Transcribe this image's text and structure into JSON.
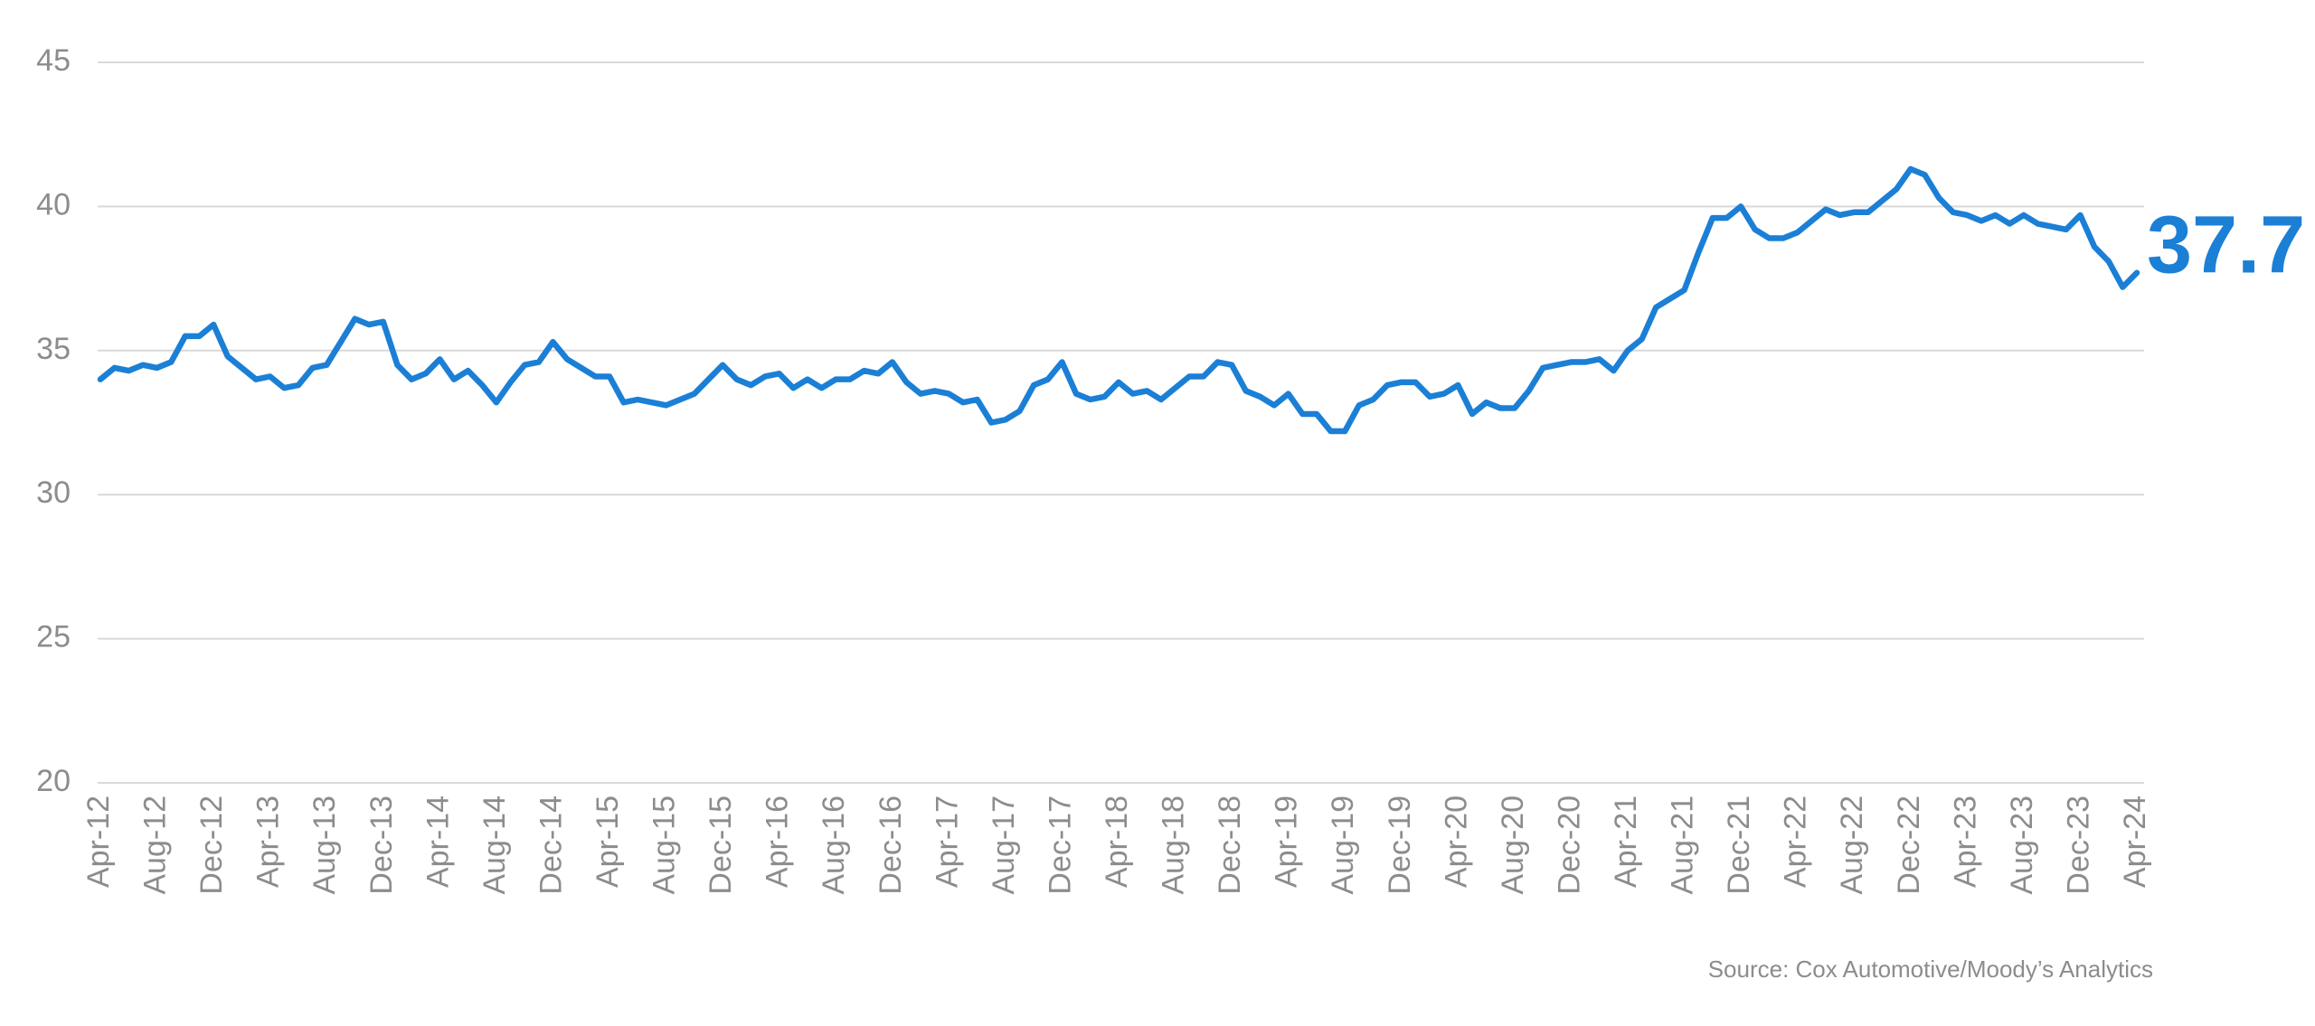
{
  "chart_data": {
    "type": "line",
    "categories": [
      "Apr-12",
      null,
      null,
      null,
      "Aug-12",
      null,
      null,
      null,
      "Dec-12",
      null,
      null,
      null,
      "Apr-13",
      null,
      null,
      null,
      "Aug-13",
      null,
      null,
      null,
      "Dec-13",
      null,
      null,
      null,
      "Apr-14",
      null,
      null,
      null,
      "Aug-14",
      null,
      null,
      null,
      "Dec-14",
      null,
      null,
      null,
      "Apr-15",
      null,
      null,
      null,
      "Aug-15",
      null,
      null,
      null,
      "Dec-15",
      null,
      null,
      null,
      "Apr-16",
      null,
      null,
      null,
      "Aug-16",
      null,
      null,
      null,
      "Dec-16",
      null,
      null,
      null,
      "Apr-17",
      null,
      null,
      null,
      "Aug-17",
      null,
      null,
      null,
      "Dec-17",
      null,
      null,
      null,
      "Apr-18",
      null,
      null,
      null,
      "Aug-18",
      null,
      null,
      null,
      "Dec-18",
      null,
      null,
      null,
      "Apr-19",
      null,
      null,
      null,
      "Aug-19",
      null,
      null,
      null,
      "Dec-19",
      null,
      null,
      null,
      "Apr-20",
      null,
      null,
      null,
      "Aug-20",
      null,
      null,
      null,
      "Dec-20",
      null,
      null,
      null,
      "Apr-21",
      null,
      null,
      null,
      "Aug-21",
      null,
      null,
      null,
      "Dec-21",
      null,
      null,
      null,
      "Apr-22",
      null,
      null,
      null,
      "Aug-22",
      null,
      null,
      null,
      "Dec-22",
      null,
      null,
      null,
      "Apr-23",
      null,
      null,
      null,
      "Aug-23",
      null,
      null,
      null,
      "Dec-23",
      null,
      null,
      null,
      "Apr-24"
    ],
    "values": [
      34.0,
      34.4,
      34.3,
      34.5,
      34.4,
      34.6,
      35.5,
      35.5,
      35.9,
      34.8,
      34.4,
      34.0,
      34.1,
      33.7,
      33.8,
      34.4,
      34.5,
      35.3,
      36.1,
      35.9,
      36.0,
      34.5,
      34.0,
      34.2,
      34.7,
      34.0,
      34.3,
      33.8,
      33.2,
      33.9,
      34.5,
      34.6,
      35.3,
      34.7,
      34.4,
      34.1,
      34.1,
      33.2,
      33.3,
      33.2,
      33.1,
      33.3,
      33.5,
      34.0,
      34.5,
      34.0,
      33.8,
      34.1,
      34.2,
      33.7,
      34.0,
      33.7,
      34.0,
      34.0,
      34.3,
      34.2,
      34.6,
      33.9,
      33.5,
      33.6,
      33.5,
      33.2,
      33.3,
      32.5,
      32.6,
      32.9,
      33.8,
      34.0,
      34.6,
      33.5,
      33.3,
      33.4,
      33.9,
      33.5,
      33.6,
      33.3,
      33.7,
      34.1,
      34.1,
      34.6,
      34.5,
      33.6,
      33.4,
      33.1,
      33.5,
      32.8,
      32.8,
      32.2,
      32.2,
      33.1,
      33.3,
      33.8,
      33.9,
      33.9,
      33.4,
      33.5,
      33.8,
      32.8,
      33.2,
      33.0,
      33.0,
      33.6,
      34.4,
      34.5,
      34.6,
      34.6,
      34.7,
      34.3,
      35.0,
      35.4,
      36.5,
      36.8,
      37.1,
      38.4,
      39.6,
      39.6,
      40.0,
      39.2,
      38.9,
      38.9,
      39.1,
      39.5,
      39.9,
      39.7,
      39.8,
      39.8,
      40.2,
      40.6,
      41.3,
      41.1,
      40.3,
      39.8,
      39.7,
      39.5,
      39.7,
      39.4,
      39.7,
      39.4,
      39.3,
      39.2,
      39.7,
      38.6,
      38.1,
      37.2,
      37.7
    ],
    "color": "#1b7fd6",
    "ylim": [
      20,
      45
    ],
    "yticks": [
      20,
      25,
      30,
      35,
      40,
      45
    ],
    "grid": true,
    "source": "Source: Cox Automotive/Moody’s Analytics"
  }
}
